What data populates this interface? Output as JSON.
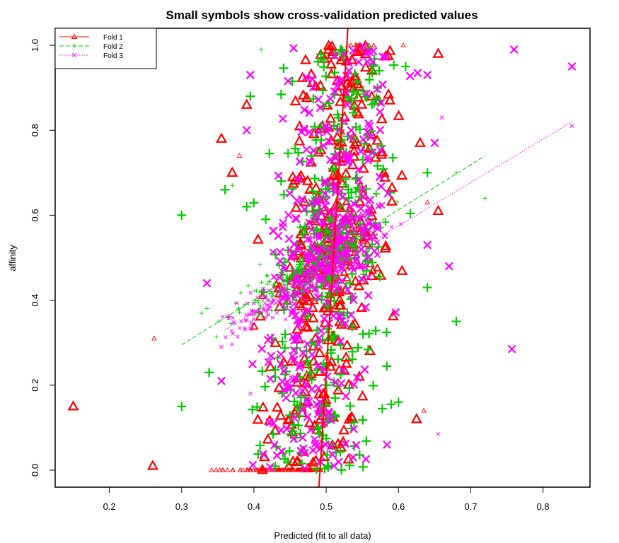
{
  "chart_data": {
    "type": "scatter",
    "title": "Small symbols show cross-validation predicted values",
    "xlabel": "Predicted (fit to all data)",
    "ylabel": "affinity",
    "xlim": [
      0.125,
      0.865
    ],
    "ylim": [
      -0.04,
      1.04
    ],
    "x_ticks": [
      "0.2",
      "0.3",
      "0.4",
      "0.5",
      "0.6",
      "0.7",
      "0.8"
    ],
    "y_ticks": [
      "0.0",
      "0.2",
      "0.4",
      "0.6",
      "0.8",
      "1.0"
    ],
    "grid": false,
    "legend_position": "top-left",
    "legend": [
      "Fold 1",
      "Fold 2",
      "Fold 3"
    ],
    "series": [
      {
        "name": "Fold 1",
        "color": "#ff0000",
        "marker": "triangle",
        "line_style": "solid",
        "fit_line": [
          [
            0.49,
            -0.04
          ],
          [
            0.53,
            1.04
          ]
        ],
        "outliers": [
          [
            0.15,
            0.15
          ],
          [
            0.26,
            0.01
          ],
          [
            0.262,
            0.31
          ],
          [
            0.355,
            0.78
          ],
          [
            0.37,
            0.7
          ],
          [
            0.38,
            0.74
          ],
          [
            0.39,
            0.86
          ],
          [
            0.625,
            0.12
          ],
          [
            0.635,
            0.14
          ],
          [
            0.63,
            0.77
          ],
          [
            0.655,
            0.98
          ],
          [
            0.64,
            0.63
          ],
          [
            0.655,
            0.61
          ]
        ]
      },
      {
        "name": "Fold 2",
        "color": "#00cc00",
        "marker": "plus",
        "line_style": "dashed",
        "fit_line": [
          [
            0.3,
            0.295
          ],
          [
            0.72,
            0.74
          ]
        ],
        "outliers": [
          [
            0.3,
            0.6
          ],
          [
            0.3,
            0.15
          ],
          [
            0.335,
            0.38
          ],
          [
            0.338,
            0.23
          ],
          [
            0.36,
            0.66
          ],
          [
            0.37,
            0.67
          ],
          [
            0.39,
            0.62
          ],
          [
            0.395,
            0.88
          ],
          [
            0.41,
            0.99
          ],
          [
            0.64,
            0.43
          ],
          [
            0.68,
            0.35
          ],
          [
            0.72,
            0.64
          ],
          [
            0.61,
            0.95
          ],
          [
            0.64,
            0.7
          ],
          [
            0.68,
            0.7
          ],
          [
            0.6,
            0.16
          ],
          [
            0.59,
            0.155
          ]
        ]
      },
      {
        "name": "Fold 3",
        "color": "#ff00ff",
        "marker": "cross",
        "line_style": "dotted",
        "fit_line": [
          [
            0.36,
            0.33
          ],
          [
            0.84,
            0.82
          ]
        ],
        "outliers": [
          [
            0.335,
            0.44
          ],
          [
            0.355,
            0.21
          ],
          [
            0.355,
            0.29
          ],
          [
            0.39,
            0.8
          ],
          [
            0.395,
            0.93
          ],
          [
            0.395,
            0.18
          ],
          [
            0.64,
            0.93
          ],
          [
            0.65,
            0.77
          ],
          [
            0.66,
            0.83
          ],
          [
            0.67,
            0.48
          ],
          [
            0.64,
            0.53
          ],
          [
            0.655,
            0.085
          ],
          [
            0.76,
            0.99
          ],
          [
            0.757,
            0.285
          ],
          [
            0.84,
            0.81
          ],
          [
            0.84,
            0.95
          ]
        ]
      }
    ]
  }
}
